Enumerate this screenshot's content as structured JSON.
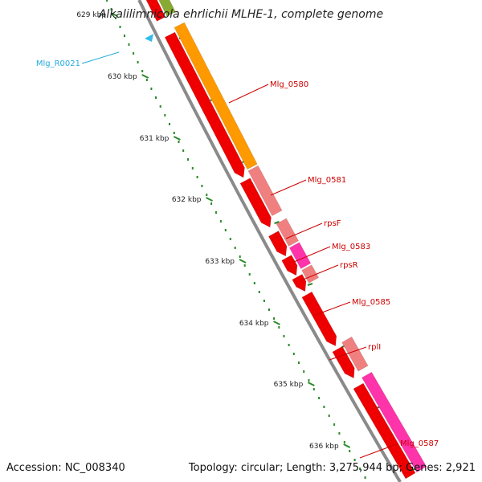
{
  "title": "Alkalilimnicola ehrlichii MLHE-1, complete genome",
  "accession": "Accession: NC_008340",
  "summary": "Topology: circular; Length: 3,275,944 bp; Genes: 2,921",
  "colors": {
    "backbone": "#8a8a8a",
    "cds": "#ee0000",
    "cds_light": "#f08080",
    "orange": "#ff9900",
    "magenta": "#ff33aa",
    "rna": "#33bbee",
    "tick": "#2a8a2a",
    "label_red": "#cc0000",
    "label_blue": "#22aadd"
  },
  "ticks": [
    {
      "label": "629 kbp"
    },
    {
      "label": "630 kbp"
    },
    {
      "label": "631 kbp"
    },
    {
      "label": "632 kbp"
    },
    {
      "label": "633 kbp"
    },
    {
      "label": "634 kbp"
    },
    {
      "label": "635 kbp"
    },
    {
      "label": "636 kbp"
    }
  ],
  "gene_labels": [
    {
      "name": "Mlg_R0021",
      "color": "#22aadd"
    },
    {
      "name": "Mlg_0580",
      "color": "#cc0000"
    },
    {
      "name": "Mlg_0581",
      "color": "#cc0000"
    },
    {
      "name": "rpsF",
      "color": "#cc0000"
    },
    {
      "name": "Mlg_0583",
      "color": "#cc0000"
    },
    {
      "name": "rpsR",
      "color": "#cc0000"
    },
    {
      "name": "Mlg_0585",
      "color": "#cc0000"
    },
    {
      "name": "rplI",
      "color": "#cc0000"
    },
    {
      "name": "Mlg_0587",
      "color": "#cc0000"
    }
  ]
}
